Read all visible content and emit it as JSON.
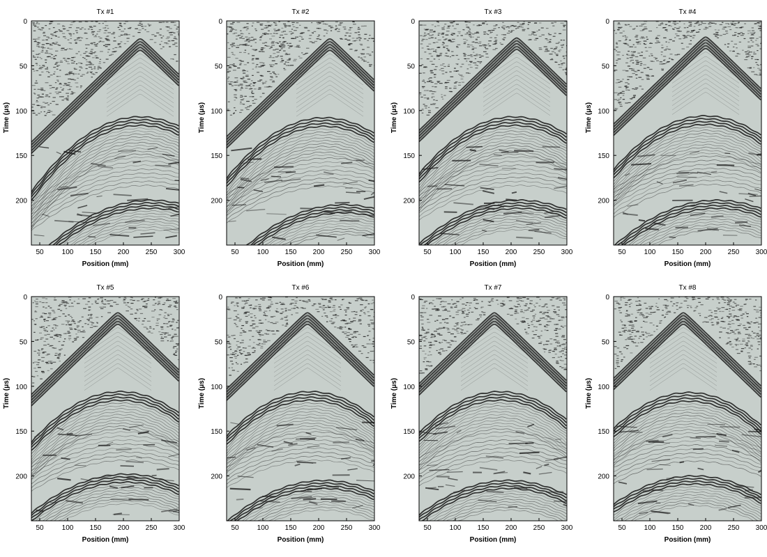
{
  "chart_data": {
    "type": "heatmap",
    "description_kind": "seismic gather panels",
    "xlabel": "Position (mm)",
    "ylabel_prefix": "Time (",
    "ylabel_unit": "μs",
    "ylabel_suffix": ")",
    "xlim": [
      35,
      300
    ],
    "ylim": [
      0,
      250
    ],
    "xticks": [
      50,
      100,
      150,
      200,
      250,
      300
    ],
    "yticks": [
      0,
      50,
      100,
      150,
      200
    ],
    "colors": {
      "background": "#ffffff",
      "panel": "#c7cfcb",
      "wave": "#1e1e1e",
      "axis": "#000000"
    },
    "panels": [
      {
        "title": "Tx #1",
        "apex_x": 230,
        "apex_t": 18,
        "event1": {
          "x": 230,
          "t": 107
        },
        "event2": {
          "x": 250,
          "t": 200
        }
      },
      {
        "title": "Tx #2",
        "apex_x": 220,
        "apex_t": 18,
        "event1": {
          "x": 210,
          "t": 108
        },
        "event2": {
          "x": 245,
          "t": 205
        }
      },
      {
        "title": "Tx #3",
        "apex_x": 210,
        "apex_t": 17,
        "event1": {
          "x": 205,
          "t": 107
        },
        "event2": {
          "x": 215,
          "t": 200
        }
      },
      {
        "title": "Tx #4",
        "apex_x": 200,
        "apex_t": 16,
        "event1": {
          "x": 200,
          "t": 106
        },
        "event2": {
          "x": 220,
          "t": 200
        }
      },
      {
        "title": "Tx #5",
        "apex_x": 190,
        "apex_t": 16,
        "event1": {
          "x": 195,
          "t": 106
        },
        "event2": {
          "x": 205,
          "t": 198
        }
      },
      {
        "title": "Tx #6",
        "apex_x": 180,
        "apex_t": 16,
        "event1": {
          "x": 185,
          "t": 106
        },
        "event2": {
          "x": 210,
          "t": 205
        }
      },
      {
        "title": "Tx #7",
        "apex_x": 170,
        "apex_t": 16,
        "event1": {
          "x": 180,
          "t": 106
        },
        "event2": {
          "x": 195,
          "t": 205
        }
      },
      {
        "title": "Tx #8",
        "apex_x": 160,
        "apex_t": 16,
        "event1": {
          "x": 170,
          "t": 107
        },
        "event2": {
          "x": 180,
          "t": 200
        }
      }
    ]
  }
}
